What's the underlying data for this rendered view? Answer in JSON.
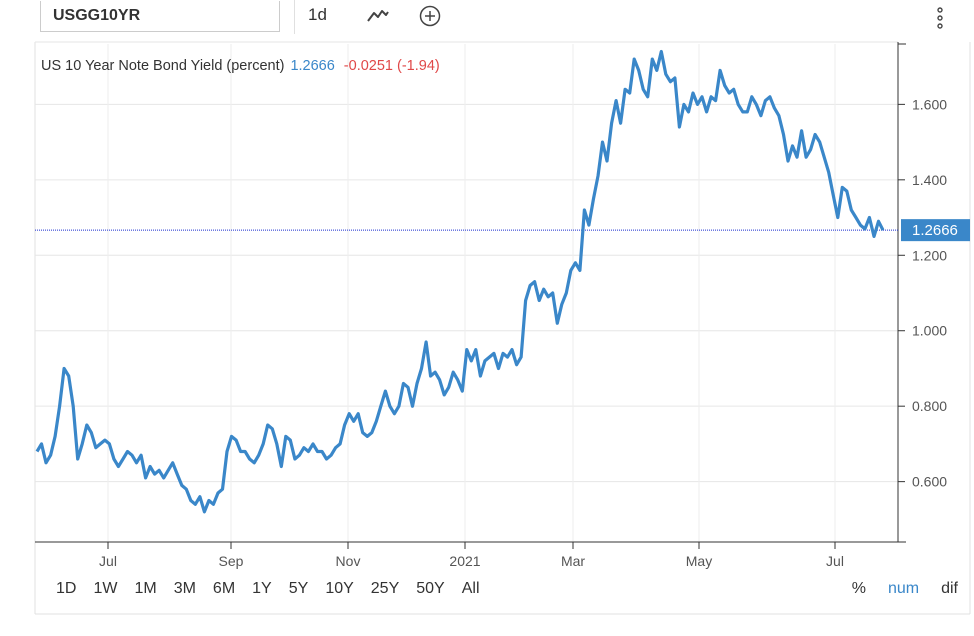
{
  "toolbar": {
    "symbol": "USGG10YR",
    "interval": "1d",
    "icons": [
      "line-chart-icon",
      "add-circle-icon",
      "more-vertical-icon"
    ]
  },
  "header": {
    "name": "US 10 Year Note Bond Yield (percent)",
    "last": "1.2666",
    "change": "-0.0251 (-1.94)",
    "last_color": "#3a87c9",
    "change_color": "#e04848"
  },
  "price_label": "1.2666",
  "colors": {
    "line": "#3a87c9",
    "price_line": "#1a2fcf",
    "label_bg": "#3a87c9"
  },
  "ranges": [
    "1D",
    "1W",
    "1M",
    "3M",
    "6M",
    "1Y",
    "5Y",
    "10Y",
    "25Y",
    "50Y",
    "All"
  ],
  "modes": [
    {
      "label": "%",
      "active": false
    },
    {
      "label": "num",
      "active": true
    },
    {
      "label": "dif",
      "active": false
    }
  ],
  "chart_data": {
    "type": "line",
    "series": [
      {
        "values": [
          0.68,
          0.7,
          0.65,
          0.67,
          0.72,
          0.8,
          0.9,
          0.88,
          0.8,
          0.66,
          0.7,
          0.75,
          0.73,
          0.69,
          0.7,
          0.71,
          0.7,
          0.66,
          0.64,
          0.66,
          0.68,
          0.67,
          0.65,
          0.67,
          0.61,
          0.64,
          0.62,
          0.63,
          0.61,
          0.63,
          0.65,
          0.62,
          0.59,
          0.58,
          0.55,
          0.54,
          0.56,
          0.52,
          0.55,
          0.54,
          0.57,
          0.58,
          0.68,
          0.72,
          0.71,
          0.68,
          0.68,
          0.66,
          0.65,
          0.67,
          0.7,
          0.75,
          0.74,
          0.7,
          0.64,
          0.72,
          0.71,
          0.66,
          0.67,
          0.69,
          0.68,
          0.7,
          0.68,
          0.68,
          0.66,
          0.67,
          0.69,
          0.7,
          0.75,
          0.78,
          0.76,
          0.78,
          0.73,
          0.72,
          0.73,
          0.76,
          0.8,
          0.84,
          0.8,
          0.78,
          0.8,
          0.86,
          0.85,
          0.8,
          0.86,
          0.9,
          0.97,
          0.88,
          0.89,
          0.87,
          0.83,
          0.85,
          0.89,
          0.87,
          0.84,
          0.95,
          0.92,
          0.95,
          0.88,
          0.92,
          0.93,
          0.94,
          0.9,
          0.94,
          0.93,
          0.95,
          0.91,
          0.93,
          1.08,
          1.12,
          1.13,
          1.08,
          1.11,
          1.09,
          1.1,
          1.02,
          1.07,
          1.1,
          1.16,
          1.18,
          1.16,
          1.32,
          1.28,
          1.35,
          1.41,
          1.5,
          1.45,
          1.55,
          1.61,
          1.55,
          1.64,
          1.63,
          1.72,
          1.69,
          1.64,
          1.62,
          1.72,
          1.69,
          1.74,
          1.68,
          1.66,
          1.67,
          1.54,
          1.6,
          1.58,
          1.63,
          1.6,
          1.62,
          1.58,
          1.62,
          1.61,
          1.69,
          1.65,
          1.63,
          1.64,
          1.6,
          1.58,
          1.58,
          1.62,
          1.6,
          1.57,
          1.61,
          1.62,
          1.59,
          1.57,
          1.52,
          1.45,
          1.49,
          1.46,
          1.53,
          1.46,
          1.48,
          1.52,
          1.5,
          1.46,
          1.42,
          1.36,
          1.3,
          1.38,
          1.37,
          1.32,
          1.3,
          1.28,
          1.27,
          1.3,
          1.25,
          1.29,
          1.2666
        ]
      }
    ],
    "x_ticks": [
      "Jul",
      "Sep",
      "Nov",
      "2021",
      "Mar",
      "May",
      "Jul"
    ],
    "y_ticks": [
      "1.600",
      "1.400",
      "1.200",
      "1.000",
      "0.800",
      "0.600"
    ],
    "ylim": [
      0.44,
      1.76
    ],
    "current_value": 1.2666,
    "grid": true
  }
}
